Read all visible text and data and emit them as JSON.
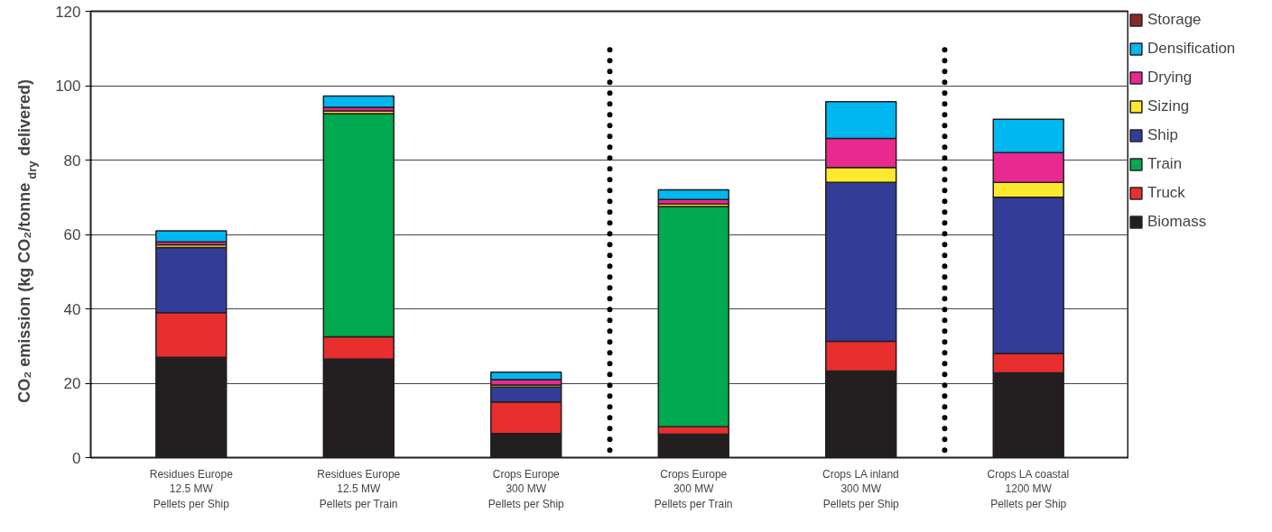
{
  "chart_data": {
    "type": "bar",
    "stacked": true,
    "ylabel": "CO₂ emission (kg CO₂/tonne$_{dry}$ delivered)",
    "categories": [
      "Residues Europe\n12.5 MW\nPellets per Ship",
      "Residues Europe\n12.5 MW\nPellets per Train",
      "Crops Europe\n300 MW\nPellets per Ship",
      "Crops Europe\n300 MW\nPellets per Train",
      "Crops LA inland\n300 MW\nPellets per Ship",
      "Crops LA coastal\n1200 MW\nPellets per Ship"
    ],
    "series": [
      {
        "name": "Biomass",
        "color": "#231f20",
        "values": [
          27,
          26.5,
          6.5,
          6.3,
          23.3,
          22.8
        ]
      },
      {
        "name": "Truck",
        "color": "#e92e2e",
        "values": [
          12,
          6,
          8.5,
          2,
          8,
          5.2
        ]
      },
      {
        "name": "Train",
        "color": "#00a84f",
        "values": [
          null,
          60,
          null,
          59.2,
          null,
          null
        ]
      },
      {
        "name": "Ship",
        "color": "#333d97",
        "values": [
          17.5,
          null,
          4,
          null,
          42.7,
          42
        ]
      },
      {
        "name": "Sizing",
        "color": "#fde92e",
        "values": [
          0.7,
          0.7,
          0.5,
          0.7,
          4,
          4
        ]
      },
      {
        "name": "Drying",
        "color": "#e9298f",
        "values": [
          0.8,
          1,
          1.5,
          1.2,
          7.8,
          8
        ]
      },
      {
        "name": "Densification",
        "color": "#00b7ef",
        "values": [
          3,
          3,
          2,
          2.6,
          9.9,
          9
        ]
      },
      {
        "name": "Storage",
        "color": "#8b2a24",
        "values": [
          0,
          0,
          0,
          0,
          0,
          0
        ]
      }
    ],
    "ylim": [
      0,
      120
    ],
    "yticks": [
      0,
      20,
      40,
      60,
      80,
      100,
      120
    ],
    "grid": "y",
    "legend": "right"
  }
}
